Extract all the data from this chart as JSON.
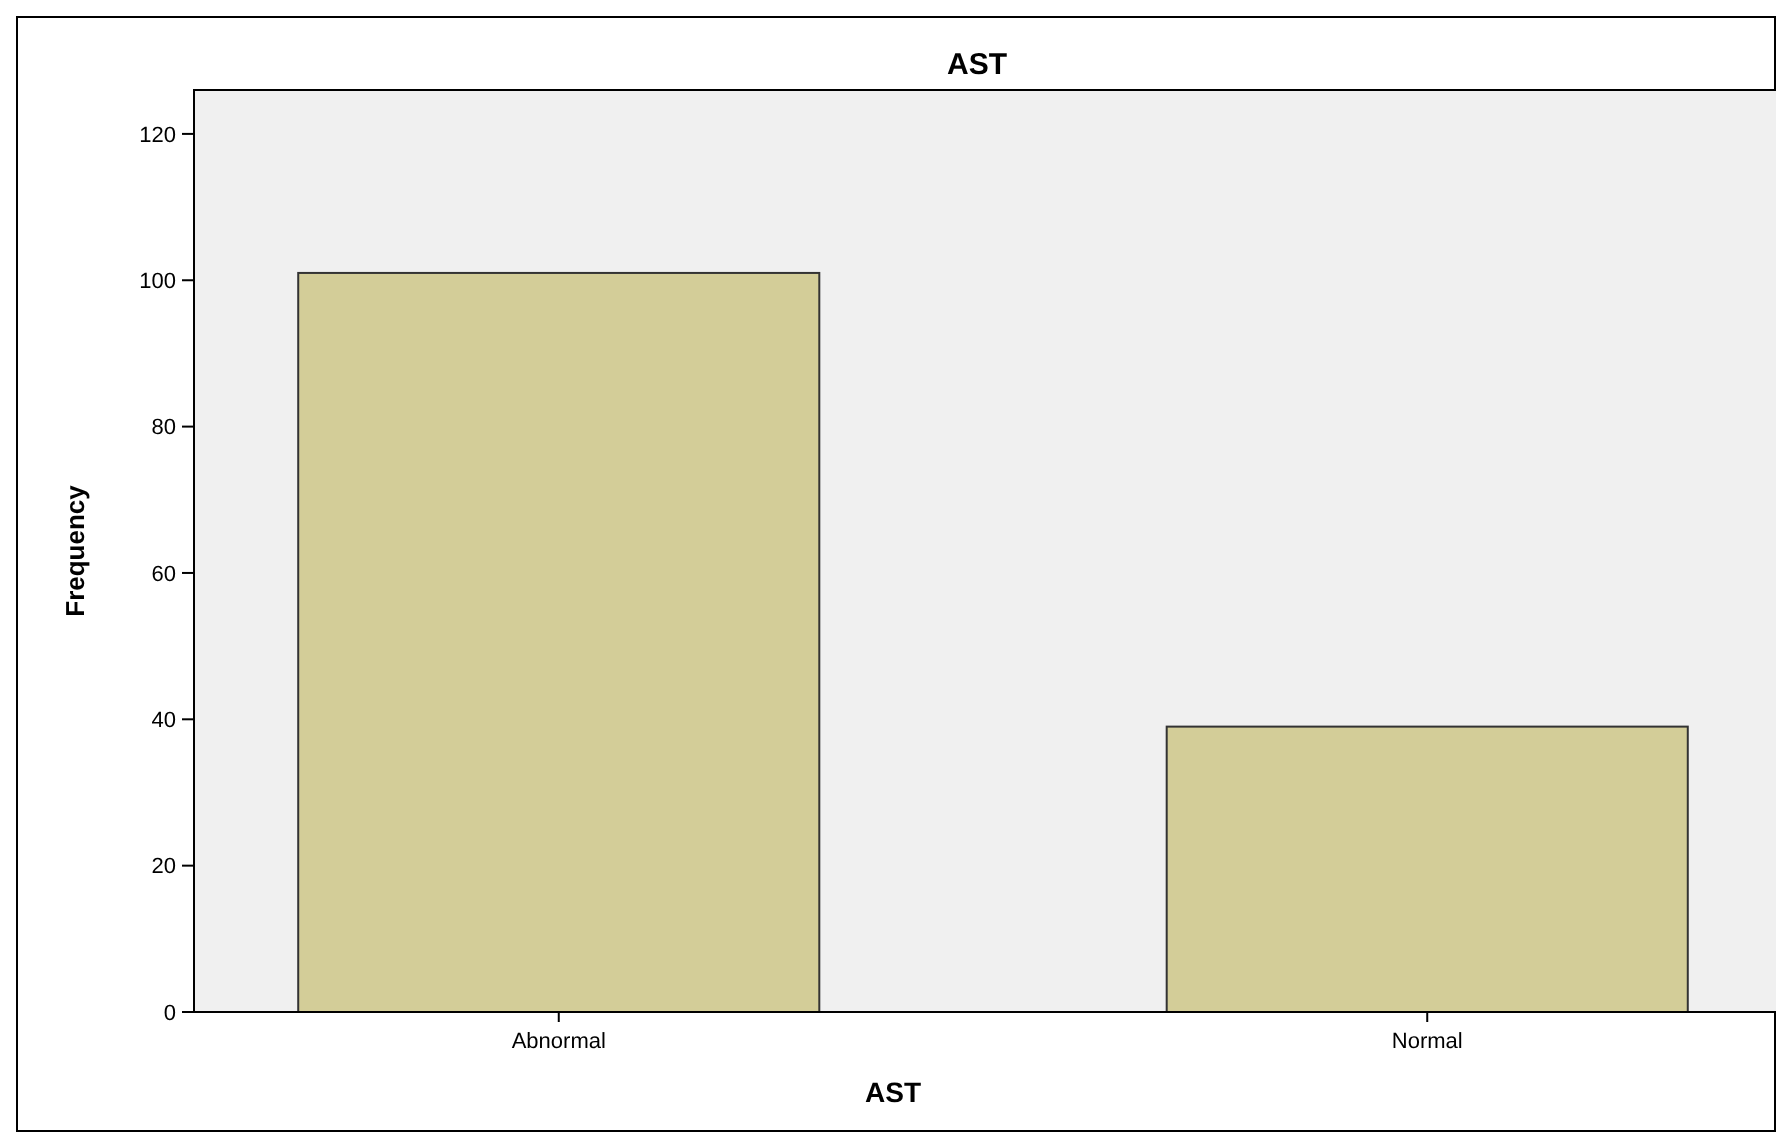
{
  "chart_data": {
    "type": "bar",
    "title": "AST",
    "xlabel": "AST",
    "ylabel": "Frequency",
    "categories": [
      "Abnormal",
      "Normal"
    ],
    "values": [
      101,
      39
    ],
    "color": "#d3cd98",
    "ylim": [
      0,
      126
    ],
    "yticks": [
      0,
      20,
      40,
      60,
      80,
      100,
      120
    ],
    "grid": false
  }
}
